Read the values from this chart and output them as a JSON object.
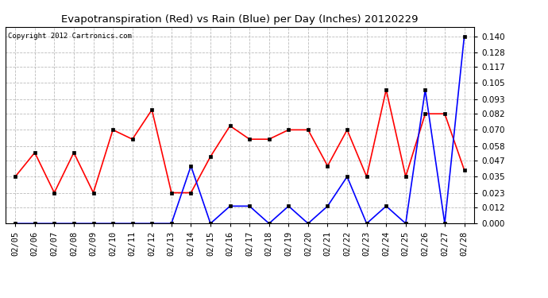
{
  "title": "Evapotranspiration (Red) vs Rain (Blue) per Day (Inches) 20120229",
  "copyright": "Copyright 2012 Cartronics.com",
  "x_labels": [
    "02/05",
    "02/06",
    "02/07",
    "02/08",
    "02/09",
    "02/10",
    "02/11",
    "02/12",
    "02/13",
    "02/14",
    "02/15",
    "02/16",
    "02/17",
    "02/18",
    "02/19",
    "02/20",
    "02/21",
    "02/22",
    "02/23",
    "02/24",
    "02/25",
    "02/26",
    "02/27",
    "02/28"
  ],
  "red_data": [
    0.035,
    0.053,
    0.023,
    0.053,
    0.023,
    0.07,
    0.063,
    0.085,
    0.023,
    0.023,
    0.05,
    0.073,
    0.063,
    0.063,
    0.07,
    0.07,
    0.043,
    0.07,
    0.035,
    0.1,
    0.035,
    0.082,
    0.082,
    0.04
  ],
  "blue_data": [
    0.0,
    0.0,
    0.0,
    0.0,
    0.0,
    0.0,
    0.0,
    0.0,
    0.0,
    0.043,
    0.0,
    0.013,
    0.013,
    0.0,
    0.013,
    0.0,
    0.013,
    0.035,
    0.0,
    0.013,
    0.0,
    0.1,
    0.0,
    0.14
  ],
  "ylim": [
    0.0,
    0.147
  ],
  "yticks": [
    0.0,
    0.012,
    0.023,
    0.035,
    0.047,
    0.058,
    0.07,
    0.082,
    0.093,
    0.105,
    0.117,
    0.128,
    0.14
  ],
  "bg_color": "#ffffff",
  "plot_bg_color": "#ffffff",
  "grid_color": "#bbbbbb",
  "red_color": "#ff0000",
  "blue_color": "#0000ff",
  "title_fontsize": 9.5,
  "copyright_fontsize": 6.5,
  "tick_fontsize": 7.5,
  "figwidth": 6.9,
  "figheight": 3.75,
  "dpi": 100
}
